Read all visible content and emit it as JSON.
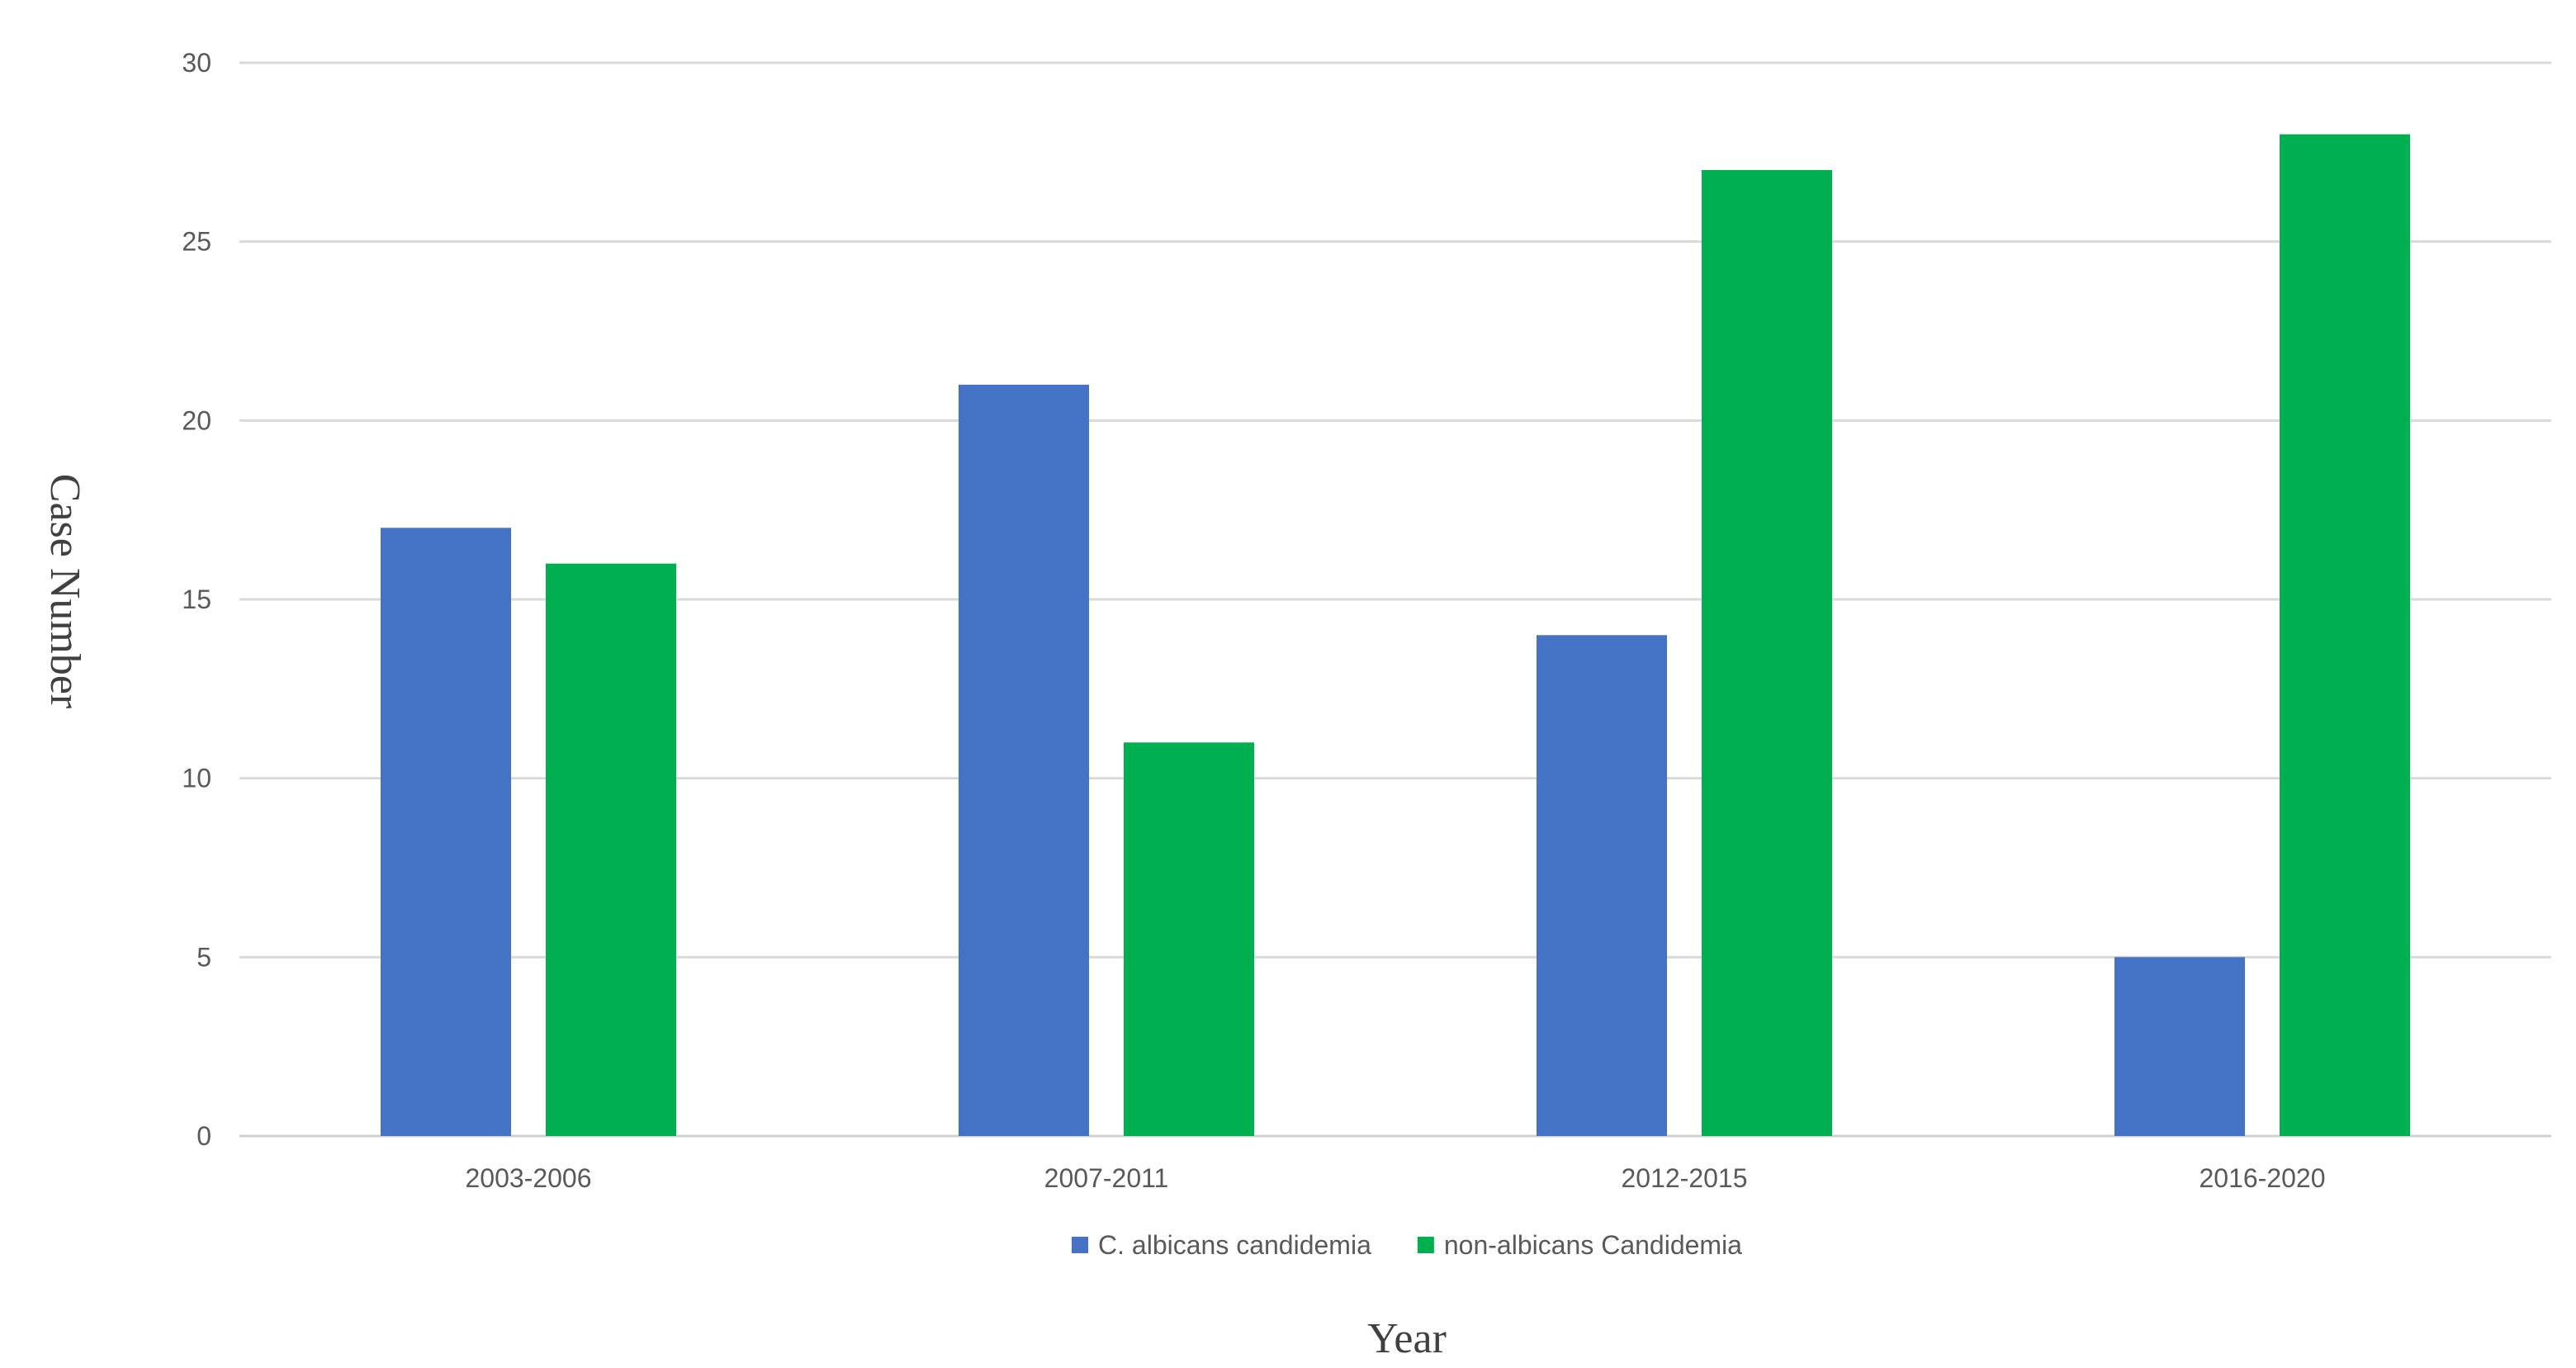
{
  "chart_data": {
    "type": "bar",
    "title": "",
    "xlabel": "Year",
    "ylabel": "Case Number",
    "categories": [
      "2003-2006",
      "2007-2011",
      "2012-2015",
      "2016-2020"
    ],
    "series": [
      {
        "name": "C. albicans candidemia",
        "color": "#4472c4",
        "values": [
          17,
          21,
          14,
          5
        ]
      },
      {
        "name": "non-albicans Candidemia",
        "color": "#00b050",
        "values": [
          16,
          11,
          27,
          28
        ]
      }
    ],
    "ylim": [
      0,
      30
    ],
    "yticks": [
      0,
      5,
      10,
      15,
      20,
      25,
      30
    ],
    "grid": true,
    "legend_position": "bottom"
  }
}
